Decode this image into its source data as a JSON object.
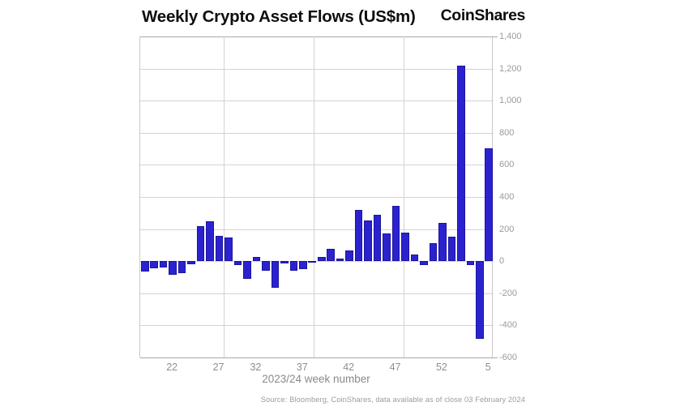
{
  "header": {
    "title": "Weekly Crypto Asset Flows (US$m)",
    "logo": "CoinShares"
  },
  "chart_data": {
    "type": "bar",
    "title": "Weekly Crypto Asset Flows (US$m)",
    "xlabel": "2023/24 week number",
    "ylabel": "",
    "ylim": [
      -600,
      1400
    ],
    "ytick_step": 200,
    "ytick_labels": [
      "1,400",
      "1,200",
      "1,000",
      "800",
      "600",
      "400",
      "200",
      "0",
      "-200",
      "-400",
      "-600"
    ],
    "grid": true,
    "legend": "none",
    "bar_color": "#2b22cf",
    "categories": [
      "19",
      "20",
      "21",
      "22",
      "23",
      "24",
      "25",
      "26",
      "27",
      "28",
      "29",
      "30",
      "32",
      "33",
      "34",
      "35",
      "36",
      "37",
      "38",
      "39",
      "40",
      "41",
      "42",
      "43",
      "44",
      "45",
      "46",
      "47",
      "48",
      "49",
      "50",
      "51",
      "52",
      "1",
      "2",
      "3",
      "4",
      "5"
    ],
    "values": [
      -65,
      -45,
      -38,
      -83,
      -74,
      -20,
      220,
      250,
      158,
      147,
      -25,
      -110,
      25,
      -60,
      -167,
      -12,
      -62,
      -51,
      -10,
      28,
      78,
      18,
      67,
      321,
      256,
      291,
      175,
      343,
      176,
      42,
      -22,
      110,
      240,
      153,
      1220,
      -25,
      -485,
      701
    ],
    "xticks": [
      {
        "label": "22",
        "index": 3
      },
      {
        "label": "27",
        "index": 8
      },
      {
        "label": "32",
        "index": 12
      },
      {
        "label": "37",
        "index": 17
      },
      {
        "label": "42",
        "index": 22
      },
      {
        "label": "47",
        "index": 27
      },
      {
        "label": "52",
        "index": 32
      },
      {
        "label": "5",
        "index": 37
      }
    ],
    "source": "Source: Bloomberg, CoinShares, data available as of close 03 February 2024"
  }
}
